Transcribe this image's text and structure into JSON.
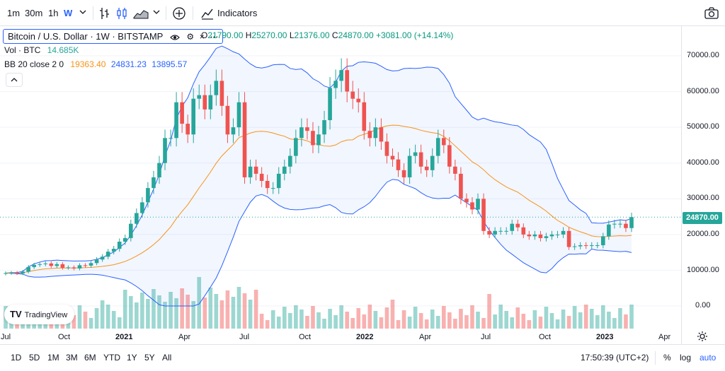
{
  "toolbar": {
    "intervals": [
      "1m",
      "30m",
      "1h",
      "W"
    ],
    "active_interval": "W",
    "indicators_label": "Indicators"
  },
  "legend": {
    "symbol": "Bitcoin / U.S. Dollar · 1W · BITSTAMP",
    "ohlc": {
      "o_label": "O",
      "o": "21790.00",
      "h_label": "H",
      "h": "25270.00",
      "l_label": "L",
      "l": "21376.00",
      "c_label": "C",
      "c": "24870.00",
      "change": "+3081.00 (+14.14%)"
    },
    "vol_label": "Vol · BTC",
    "vol_value": "14.685K",
    "bb_label": "BB 20 close 2 0",
    "bb_basis": "19363.40",
    "bb_upper": "24831.23",
    "bb_lower": "13895.57"
  },
  "price_axis": {
    "labels": [
      "70000.00",
      "60000.00",
      "50000.00",
      "40000.00",
      "30000.00",
      "20000.00",
      "10000.00",
      "0.00"
    ],
    "last_price": "24870.00"
  },
  "time_axis": {
    "labels": [
      {
        "t": "Jul",
        "bold": false
      },
      {
        "t": "Oct",
        "bold": false
      },
      {
        "t": "2021",
        "bold": true
      },
      {
        "t": "Apr",
        "bold": false
      },
      {
        "t": "Jul",
        "bold": false
      },
      {
        "t": "Oct",
        "bold": false
      },
      {
        "t": "2022",
        "bold": true
      },
      {
        "t": "Apr",
        "bold": false
      },
      {
        "t": "Jul",
        "bold": false
      },
      {
        "t": "Oct",
        "bold": false
      },
      {
        "t": "2023",
        "bold": true
      },
      {
        "t": "Apr",
        "bold": false
      }
    ]
  },
  "bottom_bar": {
    "ranges": [
      "1D",
      "5D",
      "1M",
      "3M",
      "6M",
      "YTD",
      "1Y",
      "5Y",
      "All"
    ],
    "clock": "17:50:39 (UTC+2)",
    "percent": "%",
    "log": "log",
    "auto": "auto"
  },
  "watermark": "TradingView",
  "colors": {
    "up": "#26a69a",
    "down": "#ef5350",
    "basis": "#f7931a",
    "band": "#2962ff",
    "accent": "#2962ff"
  },
  "chart_data": {
    "type": "candlestick",
    "interval": "1W",
    "ylim": [
      0,
      70000
    ],
    "series": [
      {
        "name": "BB 20 close 2 0",
        "basis_last": 19363.4,
        "upper_last": 24831.23,
        "lower_last": 13895.57
      },
      {
        "name": "Vol · BTC",
        "last": "14.685K"
      }
    ],
    "close_approx": [
      9200,
      9300,
      9100,
      9600,
      10900,
      11500,
      11700,
      11900,
      11200,
      11700,
      10700,
      10800,
      10500,
      11400,
      11300,
      12000,
      13000,
      13800,
      15200,
      16000,
      18000,
      19000,
      23000,
      26000,
      29000,
      33000,
      36000,
      40000,
      47000,
      47000,
      57000,
      51000,
      48000,
      58000,
      59000,
      55000,
      59000,
      63000,
      56000,
      48000,
      50000,
      57000,
      36000,
      39000,
      37000,
      35000,
      33000,
      33000,
      37000,
      39000,
      42000,
      47000,
      50000,
      49000,
      45000,
      48000,
      52000,
      61000,
      63000,
      66000,
      60000,
      58000,
      57000,
      49000,
      47000,
      50000,
      46000,
      42000,
      41000,
      38000,
      36000,
      42000,
      43000,
      39000,
      38000,
      42000,
      47000,
      45000,
      39000,
      37000,
      30000,
      29000,
      27000,
      30000,
      21000,
      20000,
      21000,
      21000,
      21000,
      23000,
      22000,
      20000,
      19500,
      20000,
      19000,
      19500,
      20000,
      20000,
      21000,
      16500,
      16700,
      17000,
      16800,
      17000,
      17000,
      19500,
      22800,
      23000,
      23000,
      21800,
      24870
    ]
  }
}
